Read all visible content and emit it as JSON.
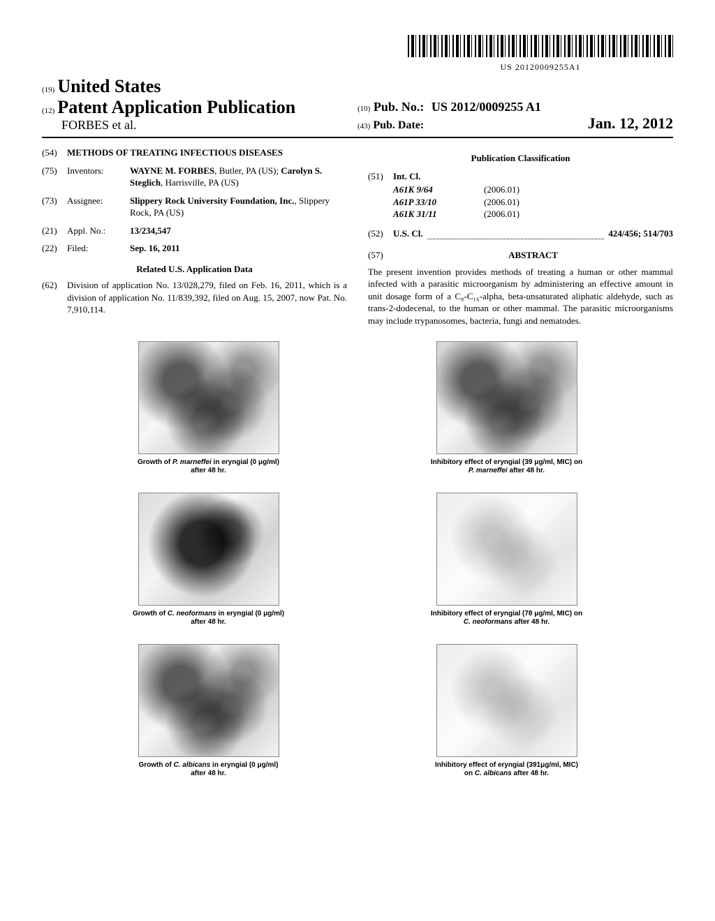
{
  "barcode_number": "US 20120009255A1",
  "header": {
    "code19": "(19)",
    "country": "United States",
    "code12": "(12)",
    "pub_type": "Patent Application Publication",
    "authors_line": "FORBES et al.",
    "code10": "(10)",
    "pub_no_label": "Pub. No.:",
    "pub_no": "US 2012/0009255 A1",
    "code43": "(43)",
    "pub_date_label": "Pub. Date:",
    "pub_date": "Jan. 12, 2012"
  },
  "left": {
    "title_code": "(54)",
    "title": "METHODS OF TREATING INFECTIOUS DISEASES",
    "inventors_code": "(75)",
    "inventors_label": "Inventors:",
    "inventors_value": "WAYNE M. FORBES, Butler, PA (US); Carolyn S. Steglich, Harrisville, PA (US)",
    "assignee_code": "(73)",
    "assignee_label": "Assignee:",
    "assignee_value": "Slippery Rock University Foundation, Inc., Slippery Rock, PA (US)",
    "appl_code": "(21)",
    "appl_label": "Appl. No.:",
    "appl_value": "13/234,547",
    "filed_code": "(22)",
    "filed_label": "Filed:",
    "filed_value": "Sep. 16, 2011",
    "related_heading": "Related U.S. Application Data",
    "related_code": "(62)",
    "related_text": "Division of application No. 13/028,279, filed on Feb. 16, 2011, which is a division of application No. 11/839,392, filed on Aug. 15, 2007, now Pat. No. 7,910,114."
  },
  "right": {
    "pub_class_heading": "Publication Classification",
    "intcl_code": "(51)",
    "intcl_label": "Int. Cl.",
    "intcl": [
      {
        "code": "A61K 9/64",
        "year": "(2006.01)"
      },
      {
        "code": "A61P 33/10",
        "year": "(2006.01)"
      },
      {
        "code": "A61K 31/11",
        "year": "(2006.01)"
      }
    ],
    "uscl_code": "(52)",
    "uscl_label": "U.S. Cl.",
    "uscl_value": "424/456; 514/703",
    "abstract_code": "(57)",
    "abstract_label": "ABSTRACT",
    "abstract_text": "The present invention provides methods of treating a human or other mammal infected with a parasitic microorganism by administering an effective amount in unit dosage form of a C₈-C₁₆-alpha, beta-unsaturated aliphatic aldehyde, such as trans-2-dodecenal, to the human or other mammal. The parasitic microorganisms may include trypanosomes, bacteria, fungi and nematodes."
  },
  "figures": [
    {
      "caption_pre": "Growth of ",
      "organism": "P. marneffei",
      "caption_post": " in eryngial (0 μg/ml) after 48 hr.",
      "shade": "mid"
    },
    {
      "caption_pre": "Inhibitory effect of eryngial (39 μg/ml, MIC) on ",
      "organism": "P. marneffei",
      "caption_post": " after 48 hr.",
      "shade": "mid"
    },
    {
      "caption_pre": "Growth of ",
      "organism": "C. neoformans",
      "caption_post": " in eryngial (0 μg/ml) after 48 hr.",
      "shade": "dark"
    },
    {
      "caption_pre": "Inhibitory effect of eryngial (78 μg/ml, MIC) on ",
      "organism": "C. neoformans",
      "caption_post": " after 48 hr.",
      "shade": "light"
    },
    {
      "caption_pre": "Growth of ",
      "organism": "C. albicans",
      "caption_post": " in eryngial (0 μg/ml) after 48 hr.",
      "shade": "mid"
    },
    {
      "caption_pre": "Inhibitory effect of eryngial (391μg/ml, MIC)  on ",
      "organism": "C. albicans",
      "caption_post": " after 48 hr.",
      "shade": "light"
    }
  ]
}
